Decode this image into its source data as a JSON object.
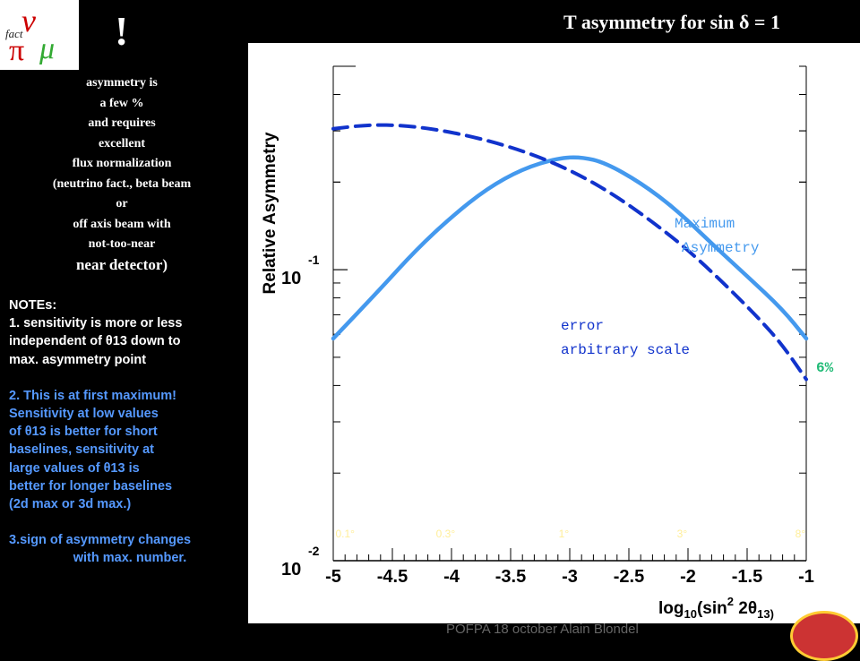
{
  "logo": {
    "text": "fact",
    "pi": "π",
    "nu": "ν",
    "mu": "μ"
  },
  "exclamation": "!",
  "left_serif_lines": [
    "asymmetry is",
    "a few %",
    "and requires",
    "excellent",
    "flux normalization",
    "(neutrino fact., beta beam",
    "or",
    "off axis beam with",
    "not-too-near",
    "near detector)"
  ],
  "notes": {
    "heading": "NOTEs:",
    "n1": [
      "1. sensitivity is more or less",
      "independent of θ13 down to",
      "max. asymmetry point"
    ],
    "n2": [
      "2. This is at first maximum!",
      "Sensitivity at low values",
      "of θ13 is better for short",
      "baselines, sensitivity at",
      "large values of θ13  is",
      "better for longer baselines",
      "(2d max or 3d max.)"
    ],
    "n3": [
      "3.sign of asymmetry changes",
      "with max. number."
    ]
  },
  "title": "T asymmetry for sin δ = 1",
  "footer": "POFPA 18 october  Alain Blondel",
  "chart_data": {
    "type": "line",
    "title": "T asymmetry for sin δ = 1",
    "xlabel": "log10(sin2 2θ13)",
    "ylabel": "Relative Asymmetry",
    "xlim": [
      -5,
      -1
    ],
    "ylim": [
      0.01,
      0.5
    ],
    "ylog": true,
    "x_ticks": [
      "-5",
      "-4.5",
      "-4",
      "-3.5",
      "-3",
      "-2.5",
      "-2",
      "-1.5",
      "-1"
    ],
    "y_ticks": [
      {
        "base": "10",
        "exp": "-1",
        "value": 0.1
      },
      {
        "base": "10",
        "exp": "-2",
        "value": 0.01
      }
    ],
    "angle_labels": [
      {
        "text": "0.1°",
        "x": -4.9
      },
      {
        "text": "0.3°",
        "x": -4.05
      },
      {
        "text": "1°",
        "x": -3.05
      },
      {
        "text": "3°",
        "x": -2.05
      },
      {
        "text": "8°",
        "x": -1.05
      }
    ],
    "series": [
      {
        "name": "Maximum Asymmetry",
        "style": "solid",
        "color": "#4499ee",
        "x": [
          -5.0,
          -4.6,
          -4.3,
          -4.0,
          -3.7,
          -3.4,
          -3.1,
          -2.9,
          -2.7,
          -2.4,
          -2.1,
          -1.8,
          -1.5,
          -1.2,
          -1.0
        ],
        "y": [
          0.058,
          0.086,
          0.117,
          0.152,
          0.19,
          0.222,
          0.242,
          0.244,
          0.233,
          0.199,
          0.161,
          0.123,
          0.095,
          0.073,
          0.058
        ]
      },
      {
        "name": "error arbitrary scale",
        "style": "dashed",
        "color": "#1133cc",
        "x": [
          -5.0,
          -4.7,
          -4.4,
          -4.1,
          -3.8,
          -3.5,
          -3.2,
          -2.9,
          -2.6,
          -2.3,
          -2.0,
          -1.7,
          -1.4,
          -1.2,
          -1.0
        ],
        "y": [
          0.305,
          0.315,
          0.313,
          0.302,
          0.285,
          0.264,
          0.239,
          0.21,
          0.178,
          0.146,
          0.117,
          0.09,
          0.068,
          0.055,
          0.042
        ]
      }
    ],
    "annotations": [
      {
        "text": "Maximum",
        "color": "#4499ee"
      },
      {
        "text": "Asymmetry",
        "color": "#4499ee"
      },
      {
        "text": "error",
        "color": "#1133cc"
      },
      {
        "text": "arbitrary scale",
        "color": "#1133cc"
      },
      {
        "text": "6%",
        "color": "#22bb77"
      }
    ]
  }
}
